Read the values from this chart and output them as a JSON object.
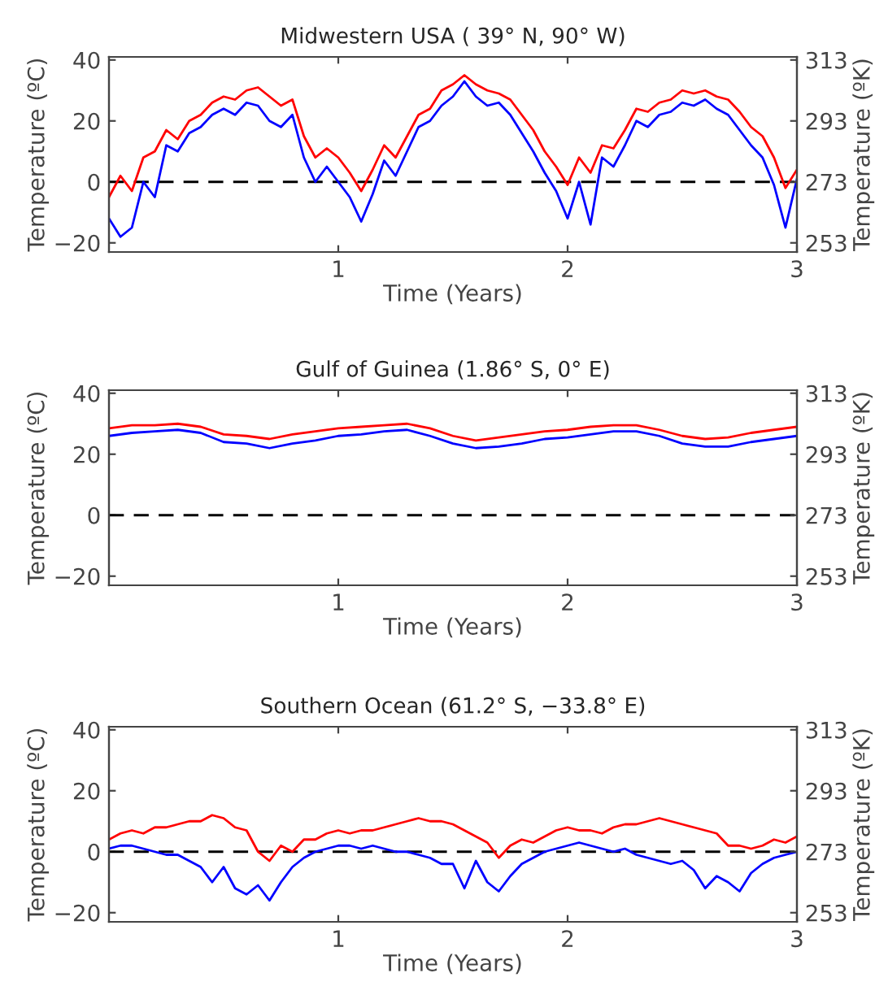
{
  "chart_data": [
    {
      "type": "line",
      "title": "Midwestern USA ( 39° N, 90° W)",
      "xlabel": "Time (Years)",
      "ylabel": "Temperature (ºC)",
      "y2label": "Temperature (ºK)",
      "x": [
        0,
        0.05,
        0.1,
        0.15,
        0.2,
        0.25,
        0.3,
        0.35,
        0.4,
        0.45,
        0.5,
        0.55,
        0.6,
        0.65,
        0.7,
        0.75,
        0.8,
        0.85,
        0.9,
        0.95,
        1.0,
        1.05,
        1.1,
        1.15,
        1.2,
        1.25,
        1.3,
        1.35,
        1.4,
        1.45,
        1.5,
        1.55,
        1.6,
        1.65,
        1.7,
        1.75,
        1.8,
        1.85,
        1.9,
        1.95,
        2.0,
        2.05,
        2.1,
        2.15,
        2.2,
        2.25,
        2.3,
        2.35,
        2.4,
        2.45,
        2.5,
        2.55,
        2.6,
        2.65,
        2.7,
        2.75,
        2.8,
        2.85,
        2.9,
        2.95,
        3.0
      ],
      "series": [
        {
          "color": "#ff0000",
          "values": [
            -5,
            2,
            -3,
            8,
            10,
            17,
            14,
            20,
            22,
            26,
            28,
            27,
            30,
            31,
            28,
            25,
            27,
            15,
            8,
            11,
            8,
            3,
            -3,
            4,
            12,
            8,
            15,
            22,
            24,
            30,
            32,
            35,
            32,
            30,
            29,
            27,
            22,
            17,
            10,
            5,
            -1,
            8,
            3,
            12,
            11,
            17,
            24,
            23,
            26,
            27,
            30,
            29,
            30,
            28,
            27,
            23,
            18,
            15,
            8,
            -2,
            4
          ]
        },
        {
          "color": "#0000ff",
          "values": [
            -12,
            -18,
            -15,
            0,
            -5,
            12,
            10,
            16,
            18,
            22,
            24,
            22,
            26,
            25,
            20,
            18,
            22,
            8,
            0,
            5,
            0,
            -5,
            -13,
            -4,
            7,
            2,
            10,
            18,
            20,
            25,
            28,
            33,
            28,
            25,
            26,
            22,
            16,
            10,
            3,
            -3,
            -12,
            0,
            -14,
            8,
            5,
            12,
            20,
            18,
            22,
            23,
            26,
            25,
            27,
            24,
            22,
            17,
            12,
            8,
            -1,
            -15,
            1
          ]
        }
      ],
      "xlim": [
        0,
        3
      ],
      "xticks": [
        1,
        2,
        3
      ],
      "ylim": [
        -23,
        41
      ],
      "yticks": [
        -20,
        0,
        20,
        40
      ],
      "y2lim": [
        250,
        314
      ],
      "y2ticks": [
        253,
        273,
        293,
        313
      ],
      "ref_lines": [
        {
          "axis": "y",
          "value": 0,
          "color": "#000000",
          "line_style": "dashed"
        }
      ],
      "grid": false,
      "legend": false,
      "marker": "none",
      "line_style": "solid"
    },
    {
      "type": "line",
      "title": "Gulf of Guinea (1.86° S, 0° E)",
      "xlabel": "Time (Years)",
      "ylabel": "Temperature (ºC)",
      "y2label": "Temperature (ºK)",
      "x": [
        0,
        0.1,
        0.2,
        0.3,
        0.4,
        0.5,
        0.6,
        0.7,
        0.8,
        0.9,
        1.0,
        1.1,
        1.2,
        1.3,
        1.4,
        1.5,
        1.6,
        1.7,
        1.8,
        1.9,
        2.0,
        2.1,
        2.2,
        2.3,
        2.4,
        2.5,
        2.6,
        2.7,
        2.8,
        2.9,
        3.0
      ],
      "series": [
        {
          "color": "#ff0000",
          "values": [
            28.5,
            29.5,
            29.5,
            30,
            29,
            26.5,
            26,
            25,
            26.5,
            27.5,
            28.5,
            29,
            29.5,
            30,
            28.5,
            26,
            24.5,
            25.5,
            26.5,
            27.5,
            28,
            29,
            29.5,
            29.5,
            28,
            26,
            25,
            25.5,
            27,
            28,
            29
          ]
        },
        {
          "color": "#0000ff",
          "values": [
            26,
            27,
            27.5,
            28,
            27,
            24,
            23.5,
            22,
            23.5,
            24.5,
            26,
            26.5,
            27.5,
            28,
            26,
            23.5,
            22,
            22.5,
            23.5,
            25,
            25.5,
            26.5,
            27.5,
            27.5,
            26,
            23.5,
            22.5,
            22.5,
            24,
            25,
            26
          ]
        }
      ],
      "xlim": [
        0,
        3
      ],
      "xticks": [
        1,
        2,
        3
      ],
      "ylim": [
        -23,
        41
      ],
      "yticks": [
        -20,
        0,
        20,
        40
      ],
      "y2lim": [
        250,
        314
      ],
      "y2ticks": [
        253,
        273,
        293,
        313
      ],
      "ref_lines": [
        {
          "axis": "y",
          "value": 0,
          "color": "#000000",
          "line_style": "dashed"
        }
      ],
      "grid": false,
      "legend": false,
      "marker": "none",
      "line_style": "solid"
    },
    {
      "type": "line",
      "title": "Southern Ocean (61.2° S, −33.8° E)",
      "xlabel": "Time (Years)",
      "ylabel": "Temperature (ºC)",
      "y2label": "Temperature (ºK)",
      "x": [
        0,
        0.05,
        0.1,
        0.15,
        0.2,
        0.25,
        0.3,
        0.35,
        0.4,
        0.45,
        0.5,
        0.55,
        0.6,
        0.65,
        0.7,
        0.75,
        0.8,
        0.85,
        0.9,
        0.95,
        1.0,
        1.05,
        1.1,
        1.15,
        1.2,
        1.25,
        1.3,
        1.35,
        1.4,
        1.45,
        1.5,
        1.55,
        1.6,
        1.65,
        1.7,
        1.75,
        1.8,
        1.85,
        1.9,
        1.95,
        2.0,
        2.05,
        2.1,
        2.15,
        2.2,
        2.25,
        2.3,
        2.35,
        2.4,
        2.45,
        2.5,
        2.55,
        2.6,
        2.65,
        2.7,
        2.75,
        2.8,
        2.85,
        2.9,
        2.95,
        3.0
      ],
      "series": [
        {
          "color": "#ff0000",
          "values": [
            4,
            6,
            7,
            6,
            8,
            8,
            9,
            10,
            10,
            12,
            11,
            8,
            7,
            0,
            -3,
            2,
            0,
            4,
            4,
            6,
            7,
            6,
            7,
            7,
            8,
            9,
            10,
            11,
            10,
            10,
            9,
            7,
            5,
            3,
            -2,
            2,
            4,
            3,
            5,
            7,
            8,
            7,
            7,
            6,
            8,
            9,
            9,
            10,
            11,
            10,
            9,
            8,
            7,
            6,
            2,
            2,
            1,
            2,
            4,
            3,
            5
          ]
        },
        {
          "color": "#0000ff",
          "values": [
            1,
            2,
            2,
            1,
            0,
            -1,
            -1,
            -3,
            -5,
            -10,
            -5,
            -12,
            -14,
            -11,
            -16,
            -10,
            -5,
            -2,
            0,
            1,
            2,
            2,
            1,
            2,
            1,
            0,
            0,
            -1,
            -2,
            -4,
            -4,
            -12,
            -3,
            -10,
            -13,
            -8,
            -4,
            -2,
            0,
            1,
            2,
            3,
            2,
            1,
            0,
            1,
            -1,
            -2,
            -3,
            -4,
            -3,
            -6,
            -12,
            -8,
            -10,
            -13,
            -7,
            -4,
            -2,
            -1,
            0
          ]
        }
      ],
      "xlim": [
        0,
        3
      ],
      "xticks": [
        1,
        2,
        3
      ],
      "ylim": [
        -23,
        41
      ],
      "yticks": [
        -20,
        0,
        20,
        40
      ],
      "y2lim": [
        250,
        314
      ],
      "y2ticks": [
        253,
        273,
        293,
        313
      ],
      "ref_lines": [
        {
          "axis": "y",
          "value": 0,
          "color": "#000000",
          "line_style": "dashed"
        }
      ],
      "grid": false,
      "legend": false,
      "marker": "none",
      "line_style": "solid"
    }
  ]
}
